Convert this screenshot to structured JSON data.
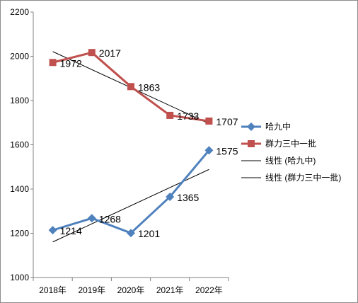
{
  "chart_data": {
    "type": "line",
    "categories": [
      "2018年",
      "2019年",
      "2020年",
      "2021年",
      "2022年"
    ],
    "ylim": [
      1000,
      2200
    ],
    "yticks": [
      1000,
      1200,
      1400,
      1600,
      1800,
      2000,
      2200
    ],
    "grid": false,
    "legend_position": "right",
    "series": [
      {
        "name": "哈九中",
        "values": [
          1214,
          1268,
          1201,
          1365,
          1575
        ],
        "color": "#4f81bd",
        "marker": "diamond"
      },
      {
        "name": "群力三中一批",
        "values": [
          1972,
          2017,
          1863,
          1733,
          1707
        ],
        "color": "#c0504d",
        "marker": "square"
      }
    ],
    "trendlines": [
      {
        "name": "线性 (哈九中)",
        "of_series": 0,
        "type": "linear",
        "color": "#000000"
      },
      {
        "name": "线性 (群力三中一批)",
        "of_series": 1,
        "type": "linear",
        "color": "#000000"
      }
    ]
  }
}
